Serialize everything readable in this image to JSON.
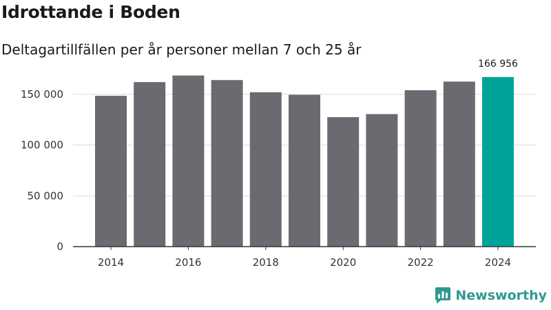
{
  "header": {
    "title": "Idrottande i Boden",
    "subtitle": "Deltagartillfällen per år personer mellan 7 och 25 år"
  },
  "brand": {
    "name": "Newsworthy"
  },
  "colors": {
    "bar": "#6b6a70",
    "highlight": "#00a39a",
    "grid": "#d9d9d9",
    "axis": "#333333"
  },
  "chart_data": {
    "type": "bar",
    "title": "Idrottande i Boden",
    "subtitle": "Deltagartillfällen per år personer mellan 7 och 25 år",
    "categories": [
      "2014",
      "2015",
      "2016",
      "2017",
      "2018",
      "2019",
      "2020",
      "2021",
      "2022",
      "2023",
      "2024"
    ],
    "values": [
      148500,
      162000,
      168500,
      164000,
      152000,
      149500,
      127500,
      130500,
      154000,
      162500,
      166956
    ],
    "highlight_index": 10,
    "x_tick_labels": [
      "2014",
      "2016",
      "2018",
      "2020",
      "2022",
      "2024"
    ],
    "y_ticks": [
      0,
      50000,
      100000,
      150000
    ],
    "y_tick_labels": [
      "0",
      "50 000",
      "100 000",
      "150 000"
    ],
    "ylim": [
      0,
      175000
    ],
    "annotation": {
      "index": 10,
      "label": "166 956"
    },
    "xlabel": "",
    "ylabel": "",
    "grid": true
  }
}
